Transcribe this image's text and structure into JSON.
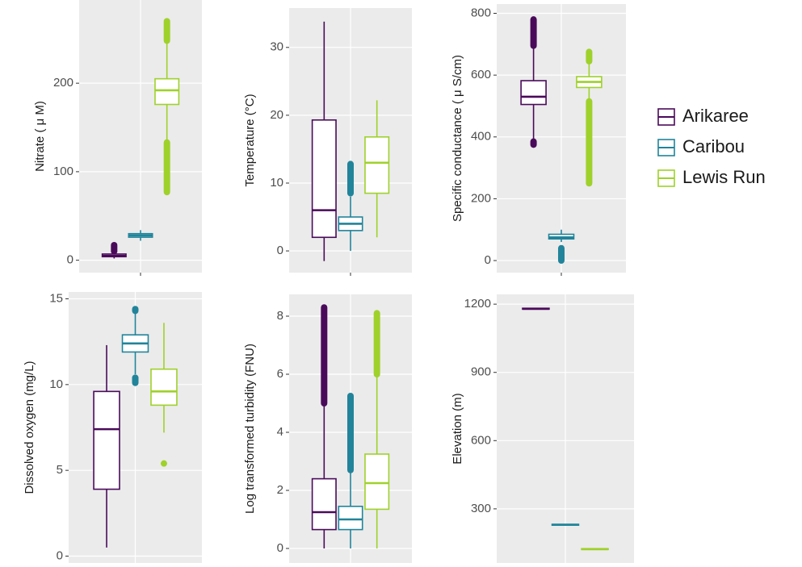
{
  "chart_data": [
    {
      "type": "box",
      "ylabel": "Nitrate ( μ M)",
      "ylim": [
        -14,
        294
      ],
      "yticks": [
        0,
        100,
        200
      ],
      "grid": true,
      "boxes": [
        {
          "whisker_low": 2,
          "q1": 4,
          "median": 5,
          "q3": 7,
          "whisker_high": 9,
          "outlier_ranges": [
            [
              10,
              17
            ]
          ]
        },
        {
          "whisker_low": 22,
          "q1": 26,
          "median": 28,
          "q3": 30,
          "whisker_high": 34,
          "outlier_ranges": []
        },
        {
          "whisker_low": 135,
          "q1": 176,
          "median": 192,
          "q3": 205,
          "whisker_high": 245,
          "outlier_ranges": [
            [
              77,
              133
            ],
            [
              248,
              270
            ]
          ]
        }
      ]
    },
    {
      "type": "box",
      "ylabel": "Temperature (°C)",
      "ylim": [
        -3.2,
        35.8
      ],
      "yticks": [
        0,
        10,
        20,
        30
      ],
      "grid": true,
      "boxes": [
        {
          "whisker_low": -1.5,
          "q1": 2,
          "median": 6,
          "q3": 19.3,
          "whisker_high": 33.8,
          "outlier_ranges": []
        },
        {
          "whisker_low": 0,
          "q1": 3,
          "median": 4,
          "q3": 5,
          "whisker_high": 8,
          "outlier_ranges": [
            [
              8.5,
              12.8
            ]
          ]
        },
        {
          "whisker_low": 2,
          "q1": 8.5,
          "median": 13,
          "q3": 16.8,
          "whisker_high": 22.2,
          "outlier_ranges": []
        }
      ]
    },
    {
      "type": "box",
      "ylabel": "Specific conductance ( μ S/cm)",
      "ylim": [
        -39,
        830
      ],
      "yticks": [
        0,
        200,
        400,
        600,
        800
      ],
      "grid": true,
      "boxes": [
        {
          "whisker_low": 395,
          "q1": 505,
          "median": 530,
          "q3": 582,
          "whisker_high": 690,
          "outlier_ranges": [
            [
              375,
              385
            ],
            [
              695,
              780
            ]
          ]
        },
        {
          "whisker_low": 60,
          "q1": 70,
          "median": 75,
          "q3": 85,
          "whisker_high": 100,
          "outlier_ranges": [
            [
              0,
              40
            ]
          ]
        },
        {
          "whisker_low": 520,
          "q1": 560,
          "median": 578,
          "q3": 595,
          "whisker_high": 640,
          "outlier_ranges": [
            [
              250,
              515
            ],
            [
              645,
              675
            ]
          ]
        }
      ]
    },
    {
      "type": "box",
      "ylabel": "Dissolved oxygen (mg/L)",
      "ylim": [
        -0.4,
        15.4
      ],
      "yticks": [
        0,
        5,
        10,
        15
      ],
      "grid": true,
      "boxes": [
        {
          "whisker_low": 0.5,
          "q1": 3.9,
          "median": 7.4,
          "q3": 9.6,
          "whisker_high": 12.3,
          "outlier_ranges": []
        },
        {
          "whisker_low": 10.6,
          "q1": 11.9,
          "median": 12.4,
          "q3": 12.9,
          "whisker_high": 14.2,
          "outlier_ranges": [
            [
              10.1,
              10.4
            ],
            [
              14.3,
              14.4
            ]
          ]
        },
        {
          "whisker_low": 7.2,
          "q1": 8.8,
          "median": 9.6,
          "q3": 10.9,
          "whisker_high": 13.6,
          "outlier_ranges": [
            [
              5.4,
              5.4
            ]
          ]
        }
      ]
    },
    {
      "type": "box",
      "ylabel": "Log transformed turbidity (FNU)",
      "ylim": [
        -0.5,
        8.75
      ],
      "yticks": [
        0,
        2,
        4,
        6,
        8
      ],
      "grid": true,
      "boxes": [
        {
          "whisker_low": 0,
          "q1": 0.65,
          "median": 1.25,
          "q3": 2.4,
          "whisker_high": 4.9,
          "outlier_ranges": [
            [
              5,
              8.3
            ]
          ]
        },
        {
          "whisker_low": 0,
          "q1": 0.65,
          "median": 1.0,
          "q3": 1.45,
          "whisker_high": 2.6,
          "outlier_ranges": [
            [
              2.7,
              5.25
            ]
          ]
        },
        {
          "whisker_low": 0,
          "q1": 1.35,
          "median": 2.25,
          "q3": 3.25,
          "whisker_high": 5.9,
          "outlier_ranges": [
            [
              6,
              8.1
            ]
          ]
        }
      ]
    },
    {
      "type": "box",
      "ylabel": "Elevation (m)",
      "ylim": [
        62,
        1243
      ],
      "yticks": [
        300,
        600,
        900,
        1200
      ],
      "grid": true,
      "boxes": [
        {
          "whisker_low": 1177,
          "q1": 1178,
          "median": 1180,
          "q3": 1182,
          "whisker_high": 1183,
          "outlier_ranges": []
        },
        {
          "whisker_low": 226,
          "q1": 228,
          "median": 230,
          "q3": 232,
          "whisker_high": 234,
          "outlier_ranges": []
        },
        {
          "whisker_low": 119,
          "q1": 121,
          "median": 123,
          "q3": 125,
          "whisker_high": 127,
          "outlier_ranges": []
        }
      ]
    }
  ],
  "legend": {
    "series": [
      {
        "name": "Arikaree",
        "color": "#4a0a5a"
      },
      {
        "name": "Caribou",
        "color": "#21849a"
      },
      {
        "name": "Lewis Run",
        "color": "#9fd12b"
      }
    ]
  }
}
